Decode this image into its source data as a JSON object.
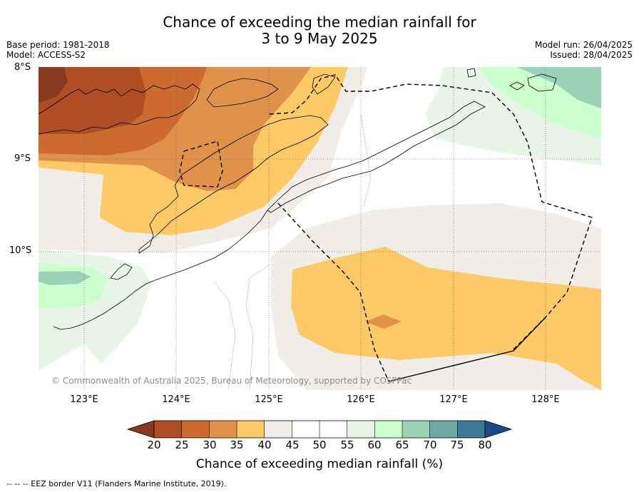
{
  "title": {
    "line1": "Chance of exceeding the median rainfall for",
    "line2": "3 to 9 May 2025"
  },
  "meta": {
    "base_period": "Base period: 1981-2018",
    "model": "Model: ACCESS-S2",
    "model_run": "Model run: 26/04/2025",
    "issued": "Issued: 28/04/2025"
  },
  "map": {
    "lat_labels": [
      "8°S",
      "9°S",
      "10°S"
    ],
    "lon_labels": [
      "123°E",
      "124°E",
      "125°E",
      "126°E",
      "127°E",
      "128°E"
    ],
    "copyright": "© Commonwealth of Australia 2025, Bureau of Meteorology, supported by COSPPac"
  },
  "colorbar": {
    "title": "Chance of exceeding median rainfall (%)",
    "ticks": [
      "20",
      "25",
      "30",
      "35",
      "40",
      "45",
      "50",
      "55",
      "60",
      "65",
      "70",
      "75",
      "80"
    ],
    "colors": [
      "#893a1e",
      "#b04d24",
      "#cd6a30",
      "#e0924a",
      "#fec967",
      "#f1ede9",
      "#ffffff",
      "#ffffff",
      "#e9f5e8",
      "#cbffcb",
      "#9ad2b8",
      "#70a9a4",
      "#3e7898",
      "#1b4b87"
    ]
  },
  "footer": {
    "eez_note": "--  --  -- EEZ border V11 (Flanders Marine Institute, 2019)."
  }
}
